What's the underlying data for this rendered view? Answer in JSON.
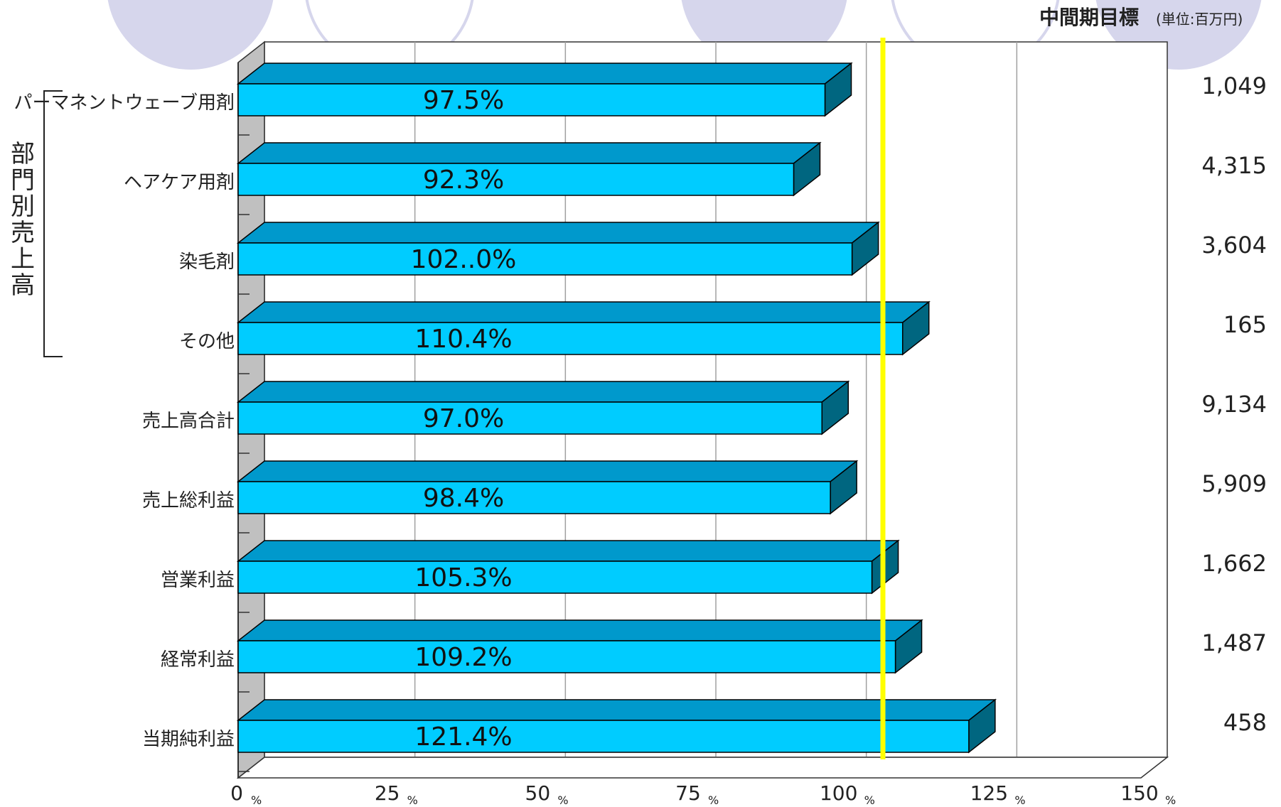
{
  "chart_data": {
    "type": "bar",
    "orientation": "horizontal",
    "categories": [
      "パーマネントウェーブ用剤",
      "ヘアケア用剤",
      "染毛剤",
      "その他",
      "売上高合計",
      "売上総利益",
      "営業利益",
      "経常利益",
      "当期純利益"
    ],
    "values": [
      97.5,
      92.3,
      102.0,
      110.4,
      97.0,
      98.4,
      105.3,
      109.2,
      121.4
    ],
    "value_labels": [
      "97.5%",
      "92.3%",
      "102..0%",
      "110.4%",
      "97.0%",
      "98.4%",
      "105.3%",
      "109.2%",
      "121.4%"
    ],
    "xlim": [
      0,
      150
    ],
    "x_ticks": [
      0,
      25,
      50,
      75,
      100,
      125,
      150
    ],
    "x_tick_unit": "%",
    "reference_line": 105,
    "group_label": "部門別売上高",
    "group_members": 4,
    "right_column": {
      "title": "中間期目標",
      "unit": "(単位:百万円)",
      "values": [
        "1,049",
        "4,315",
        "3,604",
        "165",
        "9,134",
        "5,909",
        "1,662",
        "1,487",
        "458"
      ]
    },
    "colors": {
      "bar_front": "#00ccff",
      "bar_top": "#0099cc",
      "bar_side": "#006680",
      "floor": "#c0c0c0",
      "reference_line": "#ffff00",
      "decor_circle": "#d6d6ec"
    }
  }
}
